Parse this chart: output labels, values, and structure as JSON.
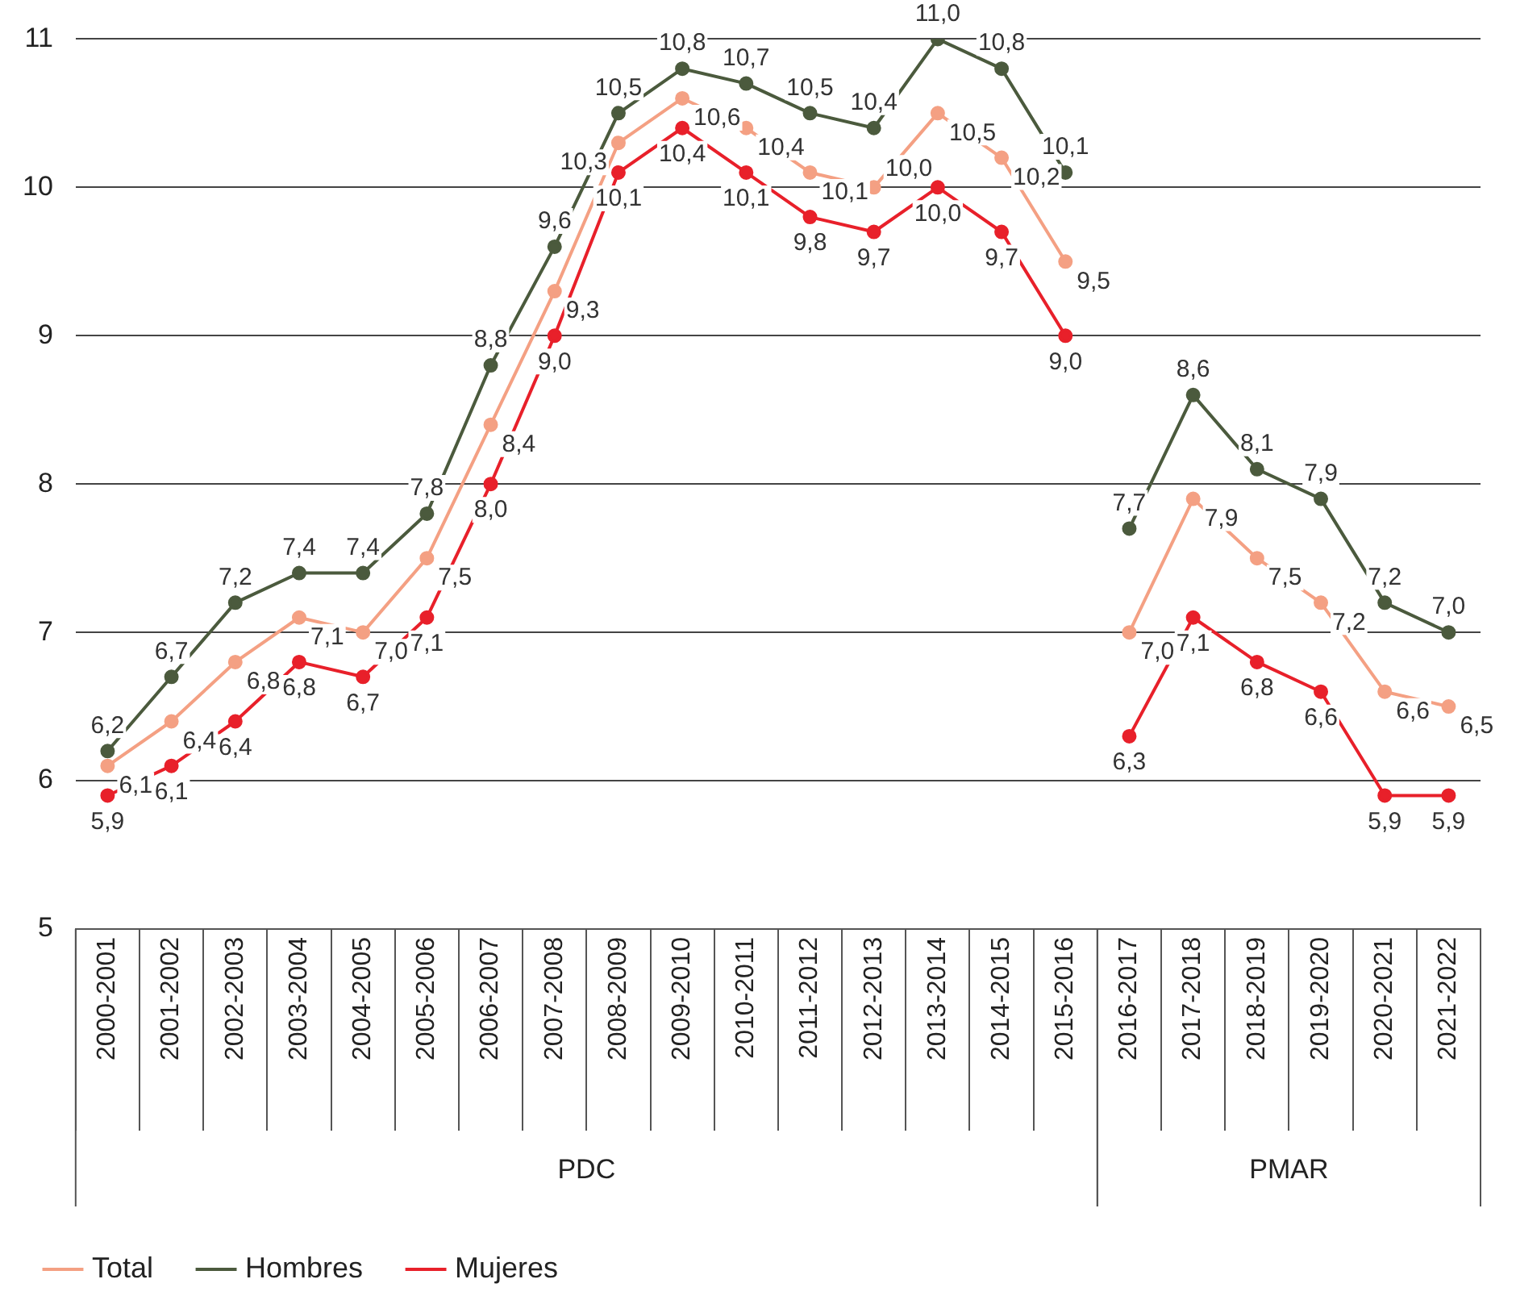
{
  "chart_data": {
    "type": "line",
    "categories": [
      "2000-2001",
      "2001-2002",
      "2002-2003",
      "2003-2004",
      "2004-2005",
      "2005-2006",
      "2006-2007",
      "2007-2008",
      "2008-2009",
      "2009-2010",
      "2010-2011",
      "2011-2012",
      "2012-2013",
      "2013-2014",
      "2014-2015",
      "2015-2016",
      "2016-2017",
      "2017-2018",
      "2018-2019",
      "2019-2020",
      "2020-2021",
      "2021-2022"
    ],
    "series": [
      {
        "name": "Total",
        "color": "#f4a083",
        "values": [
          6.1,
          6.4,
          6.8,
          7.1,
          7.0,
          7.5,
          8.4,
          9.3,
          10.3,
          10.6,
          10.4,
          10.1,
          10.0,
          10.5,
          10.2,
          9.5,
          null,
          null,
          null,
          null,
          null,
          null
        ],
        "value_labels": [
          "6,1",
          "6,4",
          "6,8",
          "7,1",
          "7,0",
          "7,5",
          "8,4",
          "9,3",
          "10,3",
          "10,6",
          "10,4",
          "10,1",
          "10,0",
          "10,5",
          "10,2",
          "9,5",
          null,
          null,
          null,
          null,
          null,
          null
        ]
      },
      {
        "color": "#f4a083",
        "values": [
          null,
          null,
          null,
          null,
          null,
          null,
          null,
          null,
          null,
          null,
          null,
          null,
          null,
          null,
          null,
          null,
          7.0,
          7.9,
          7.5,
          7.2,
          6.6,
          6.5
        ],
        "value_labels": [
          null,
          null,
          null,
          null,
          null,
          null,
          null,
          null,
          null,
          null,
          null,
          null,
          null,
          null,
          null,
          null,
          "7,0",
          "7,9",
          "7,5",
          "7,2",
          "6,6",
          "6,5"
        ]
      },
      {
        "name": "Hombres",
        "color": "#4b5a3d",
        "values": [
          6.2,
          6.7,
          7.2,
          7.4,
          7.4,
          7.8,
          8.8,
          9.6,
          10.5,
          10.8,
          10.7,
          10.5,
          10.4,
          11.0,
          10.8,
          10.1,
          null,
          null,
          null,
          null,
          null,
          null
        ],
        "value_labels": [
          "6,2",
          "6,7",
          "7,2",
          "7,4",
          "7,4",
          "7,8",
          "8,8",
          "9,6",
          "10,5",
          "10,8",
          "10,7",
          "10,5",
          "10,4",
          "11,0",
          "10,8",
          "10,1",
          null,
          null,
          null,
          null,
          null,
          null
        ]
      },
      {
        "color": "#4b5a3d",
        "values": [
          null,
          null,
          null,
          null,
          null,
          null,
          null,
          null,
          null,
          null,
          null,
          null,
          null,
          null,
          null,
          null,
          7.7,
          8.6,
          8.1,
          7.9,
          7.2,
          7.0
        ],
        "value_labels": [
          null,
          null,
          null,
          null,
          null,
          null,
          null,
          null,
          null,
          null,
          null,
          null,
          null,
          null,
          null,
          null,
          "7,7",
          "8,6",
          "8,1",
          "7,9",
          "7,2",
          "7,0"
        ]
      },
      {
        "name": "Mujeres",
        "color": "#e8202a",
        "values": [
          5.9,
          6.1,
          6.4,
          6.8,
          6.7,
          7.1,
          8.0,
          9.0,
          10.1,
          10.4,
          10.1,
          9.8,
          9.7,
          10.0,
          9.7,
          9.0,
          null,
          null,
          null,
          null,
          null,
          null
        ],
        "value_labels": [
          "5,9",
          "6,1",
          "6,4",
          "6,8",
          "6,7",
          "7,1",
          "8,0",
          "9,0",
          "10,1",
          "10,4",
          "10,1",
          "9,8",
          "9,7",
          "10,0",
          "9,7",
          "9,0",
          null,
          null,
          null,
          null,
          null,
          null
        ]
      },
      {
        "color": "#e8202a",
        "values": [
          null,
          null,
          null,
          null,
          null,
          null,
          null,
          null,
          null,
          null,
          null,
          null,
          null,
          null,
          null,
          null,
          6.3,
          7.1,
          6.8,
          6.6,
          5.9,
          5.9
        ],
        "value_labels": [
          null,
          null,
          null,
          null,
          null,
          null,
          null,
          null,
          null,
          null,
          null,
          null,
          null,
          null,
          null,
          null,
          "6,3",
          "7,1",
          "6,8",
          "6,6",
          "5,9",
          "5,9"
        ]
      }
    ],
    "annotations": [
      "PDC",
      "PMAR"
    ],
    "ylim": [
      5,
      11
    ],
    "yticks": [
      5,
      6,
      7,
      8,
      9,
      10,
      11
    ],
    "grid": "y",
    "legend": "bottom left",
    "marker": "circle",
    "line_style": "solid"
  }
}
